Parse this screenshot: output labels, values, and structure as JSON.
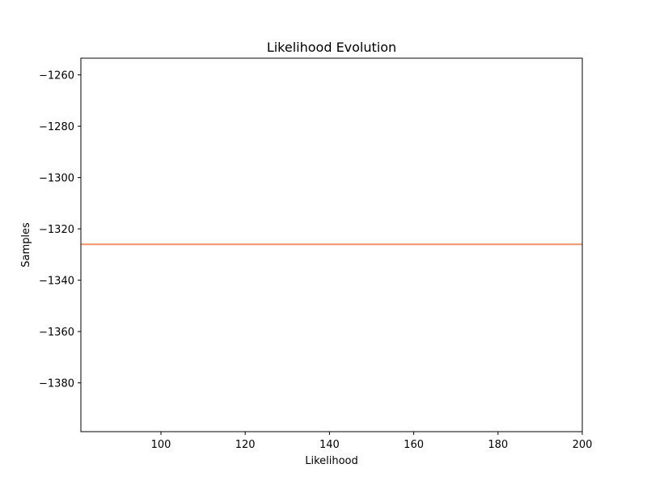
{
  "chart_data": {
    "type": "line",
    "title": "Likelihood Evolution",
    "xlabel": "Likelihood",
    "ylabel": "Samples",
    "xlim": [
      81,
      200
    ],
    "ylim": [
      -1399,
      -1253.5
    ],
    "x_ticks": [
      100,
      120,
      140,
      160,
      180,
      200
    ],
    "x_tick_labels": [
      "100",
      "120",
      "140",
      "160",
      "180",
      "200"
    ],
    "y_ticks": [
      -1260,
      -1280,
      -1300,
      -1320,
      -1340,
      -1360,
      -1380
    ],
    "y_tick_labels": [
      "−1260",
      "−1280",
      "−1300",
      "−1320",
      "−1340",
      "−1360",
      "−1380"
    ],
    "grid": false,
    "series": [
      {
        "color": "#f0926a",
        "x": [
          81,
          200
        ],
        "y": [
          -1326,
          -1326
        ]
      }
    ]
  }
}
